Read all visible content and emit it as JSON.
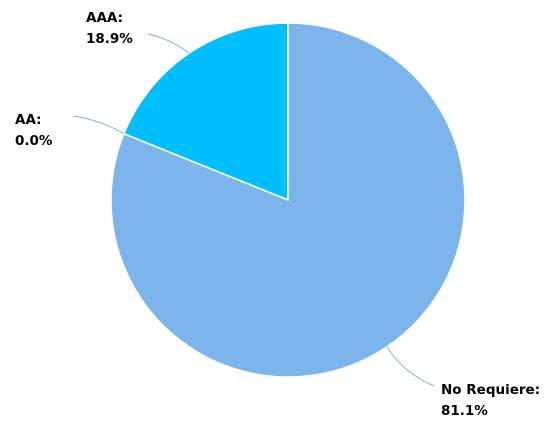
{
  "chart_data": {
    "type": "pie",
    "title": "",
    "slices": [
      {
        "label": "AAA:",
        "value": 18.9,
        "display": "18.9%",
        "color": "#00BFFF"
      },
      {
        "label": "AA:",
        "value": 0.0,
        "display": "0.0%",
        "color": "#1E90FF"
      },
      {
        "label": "No Requiere:",
        "value": 81.1,
        "display": "81.1%",
        "color": "#7CB5EC"
      }
    ],
    "start_angle": "12 o'clock",
    "direction": "counter-clockwise",
    "legend": "none",
    "data_labels": "outside with leader lines",
    "slice_border_color": "#ffffff",
    "leader_line_color": "#7CB5EC"
  }
}
